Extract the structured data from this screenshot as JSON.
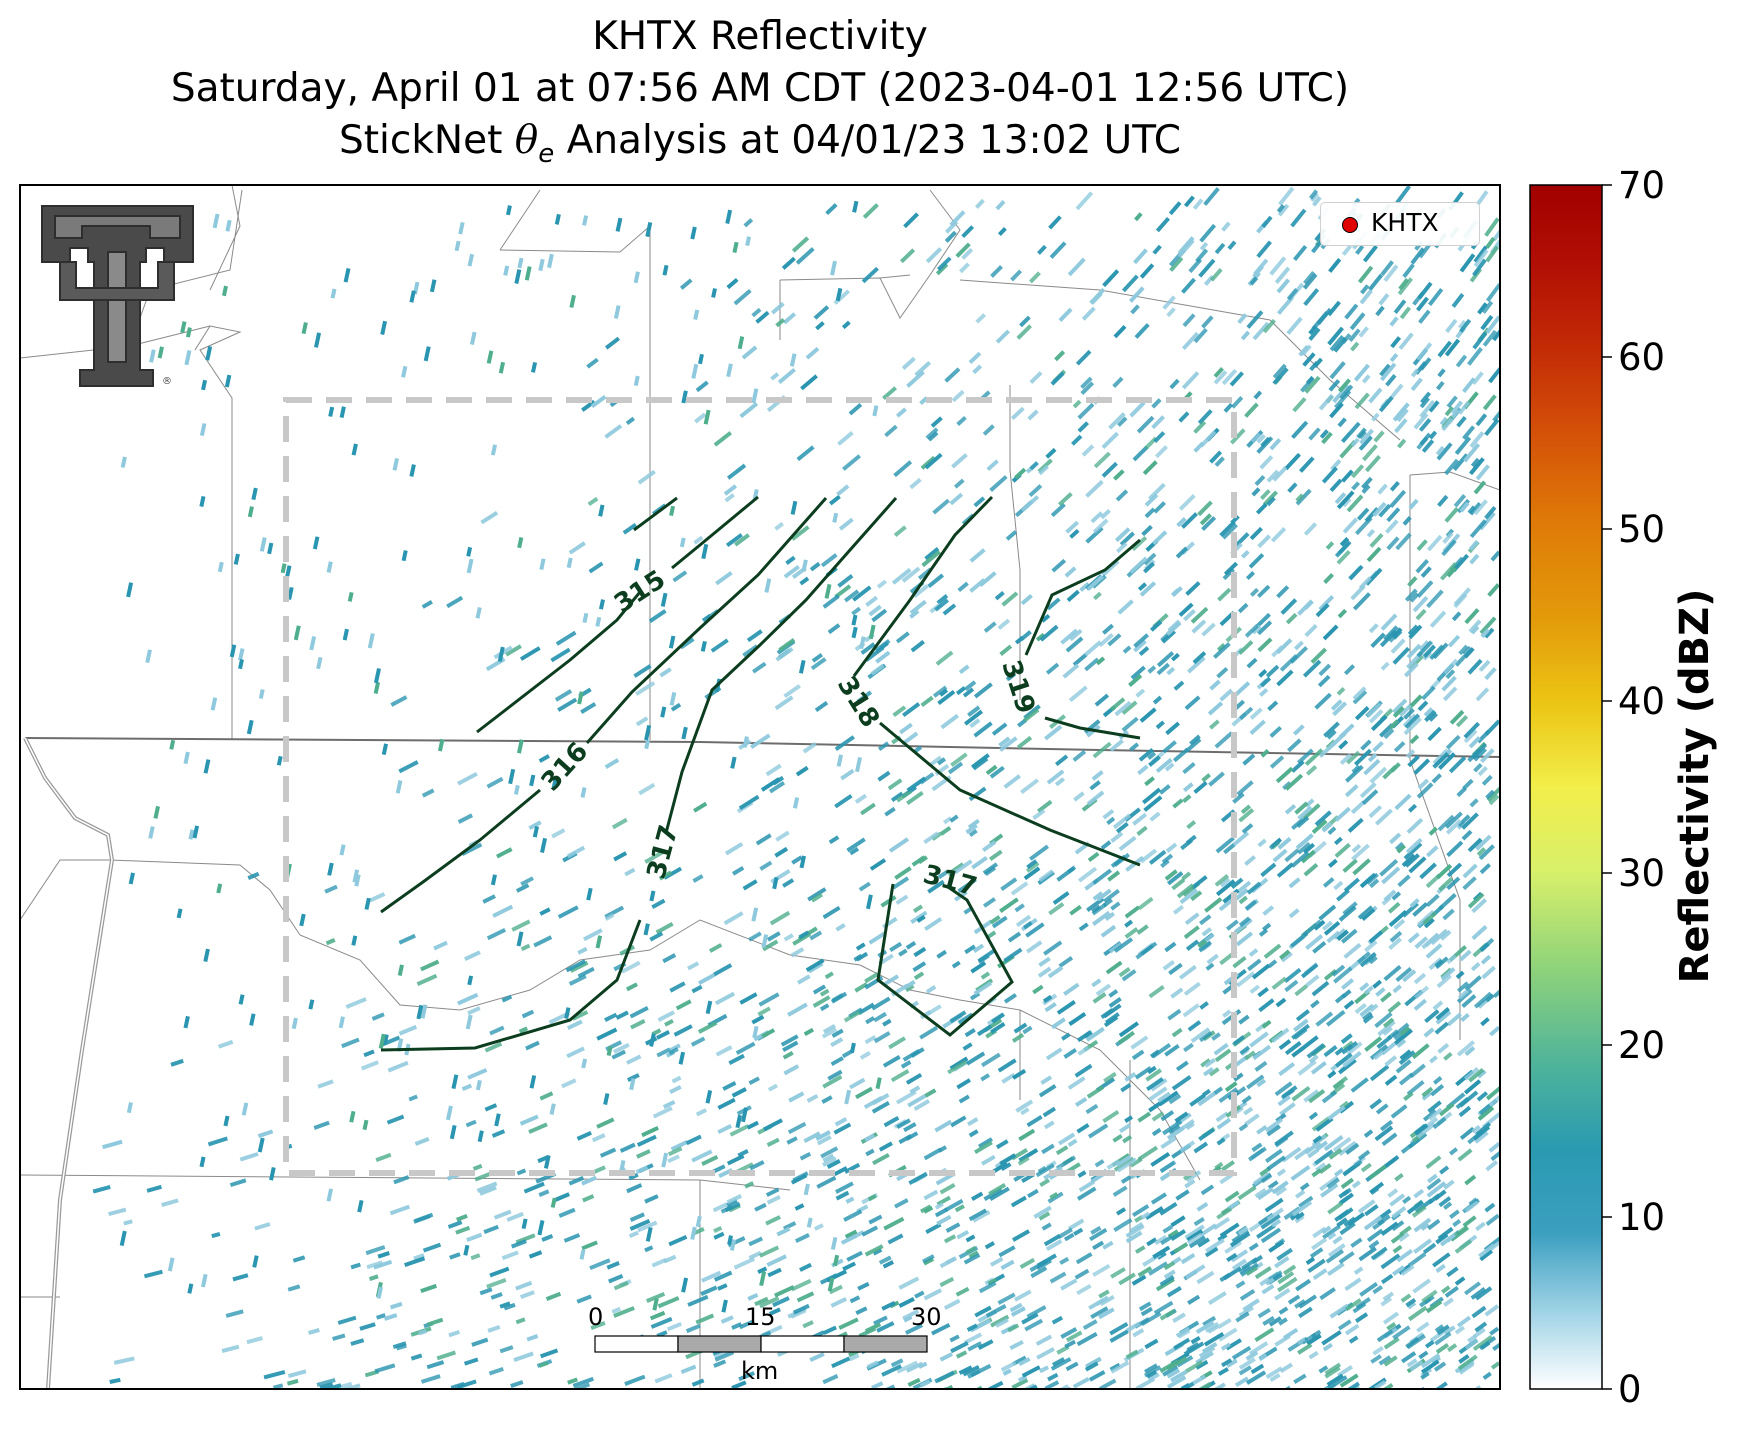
{
  "title": {
    "line1": "KHTX Reflectivity",
    "line2": "Saturday, April 01 at 07:56 AM CDT (2023-04-01 12:56 UTC)",
    "line3_prefix": "StickNet ",
    "line3_symbol": "θ",
    "line3_subscript": "e",
    "line3_suffix": " Analysis at 04/01/23 13:02 UTC"
  },
  "legend": {
    "label": "KHTX",
    "marker_color": "#e00000"
  },
  "colorbar": {
    "label": "Reflectivity (dBZ)",
    "min": 0,
    "max": 70,
    "ticks": [
      "0",
      "10",
      "20",
      "30",
      "40",
      "50",
      "60",
      "70"
    ]
  },
  "scale_bar": {
    "labels": [
      "0",
      "15",
      "30"
    ],
    "unit": "km"
  },
  "contours": {
    "color": "#0b3d1e",
    "labels": [
      "315",
      "316",
      "317",
      "318",
      "319",
      "317"
    ]
  },
  "colors": {
    "reflectivity_main": "#2a95b0",
    "reflectivity_light": "#8ec9dd",
    "reflectivity_green": "#4fae8c",
    "box_outline": "#c8c8c8",
    "borders": "#8a8a8a"
  },
  "logo": "texas-tech-double-t-logo"
}
